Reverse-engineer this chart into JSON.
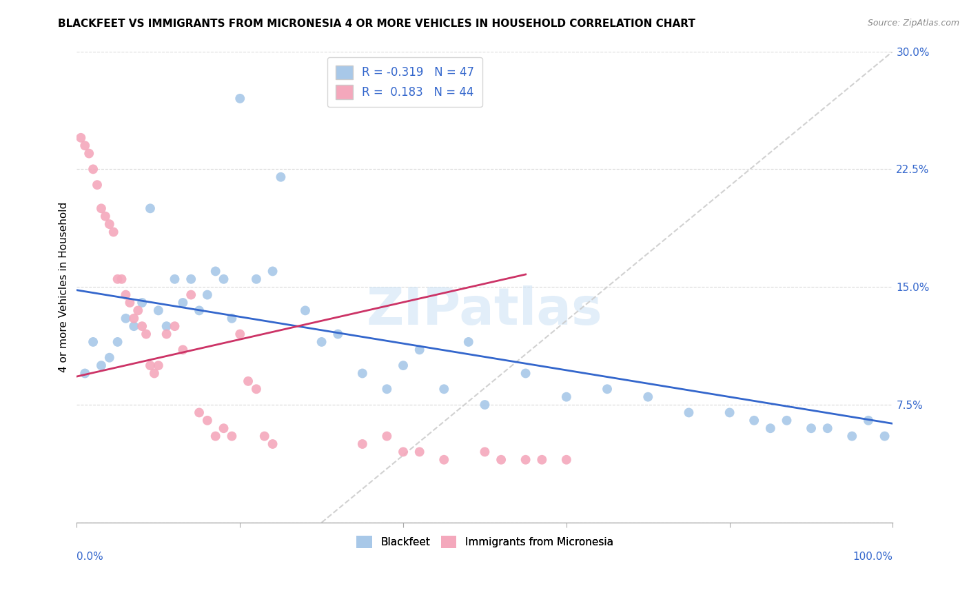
{
  "title": "BLACKFEET VS IMMIGRANTS FROM MICRONESIA 4 OR MORE VEHICLES IN HOUSEHOLD CORRELATION CHART",
  "source": "Source: ZipAtlas.com",
  "ylabel": "4 or more Vehicles in Household",
  "ytick_labels": [
    "",
    "7.5%",
    "15.0%",
    "22.5%",
    "30.0%"
  ],
  "ytick_vals": [
    0.0,
    0.075,
    0.15,
    0.225,
    0.3
  ],
  "blue_color": "#a8c8e8",
  "pink_color": "#f4a8bc",
  "trend_blue": "#3366cc",
  "trend_pink": "#cc3366",
  "trend_gray_color": "#cccccc",
  "blue_scatter_x": [
    1,
    2,
    3,
    4,
    5,
    6,
    7,
    8,
    9,
    10,
    11,
    12,
    13,
    14,
    15,
    16,
    17,
    18,
    19,
    20,
    22,
    24,
    25,
    28,
    30,
    32,
    35,
    38,
    40,
    42,
    45,
    48,
    50,
    55,
    60,
    65,
    70,
    75,
    80,
    83,
    85,
    87,
    90,
    92,
    95,
    97,
    99
  ],
  "blue_scatter_y": [
    0.095,
    0.115,
    0.1,
    0.105,
    0.115,
    0.13,
    0.125,
    0.14,
    0.2,
    0.135,
    0.125,
    0.155,
    0.14,
    0.155,
    0.135,
    0.145,
    0.16,
    0.155,
    0.13,
    0.27,
    0.155,
    0.16,
    0.22,
    0.135,
    0.115,
    0.12,
    0.095,
    0.085,
    0.1,
    0.11,
    0.085,
    0.115,
    0.075,
    0.095,
    0.08,
    0.085,
    0.08,
    0.07,
    0.07,
    0.065,
    0.06,
    0.065,
    0.06,
    0.06,
    0.055,
    0.065,
    0.055
  ],
  "pink_scatter_x": [
    0.5,
    1,
    1.5,
    2,
    2.5,
    3,
    3.5,
    4,
    4.5,
    5,
    5.5,
    6,
    6.5,
    7,
    7.5,
    8,
    8.5,
    9,
    9.5,
    10,
    11,
    12,
    13,
    14,
    15,
    16,
    17,
    18,
    19,
    20,
    21,
    22,
    23,
    24,
    35,
    38,
    40,
    42,
    45,
    50,
    52,
    55,
    57,
    60
  ],
  "pink_scatter_y": [
    0.245,
    0.24,
    0.235,
    0.225,
    0.215,
    0.2,
    0.195,
    0.19,
    0.185,
    0.155,
    0.155,
    0.145,
    0.14,
    0.13,
    0.135,
    0.125,
    0.12,
    0.1,
    0.095,
    0.1,
    0.12,
    0.125,
    0.11,
    0.145,
    0.07,
    0.065,
    0.055,
    0.06,
    0.055,
    0.12,
    0.09,
    0.085,
    0.055,
    0.05,
    0.05,
    0.055,
    0.045,
    0.045,
    0.04,
    0.045,
    0.04,
    0.04,
    0.04,
    0.04
  ],
  "xlim": [
    0,
    100
  ],
  "ylim": [
    0,
    0.3
  ],
  "figsize": [
    14.06,
    8.92
  ],
  "dpi": 100,
  "blue_trend_x0": 0,
  "blue_trend_y0": 0.148,
  "blue_trend_x1": 100,
  "blue_trend_y1": 0.063,
  "pink_trend_x0": 0,
  "pink_trend_y0": 0.093,
  "pink_trend_x1": 55,
  "pink_trend_y1": 0.158,
  "gray_trend_x0": 30,
  "gray_trend_y0": 0.0,
  "gray_trend_x1": 100,
  "gray_trend_y1": 0.3
}
